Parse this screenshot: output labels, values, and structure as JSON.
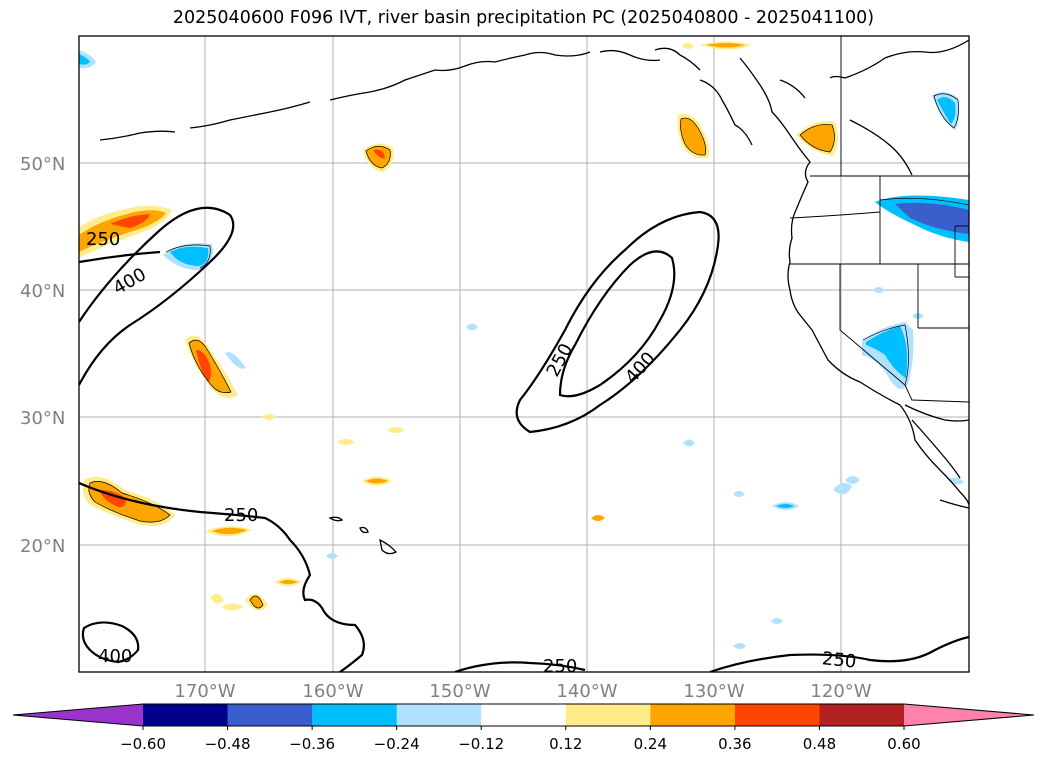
{
  "title": "2025040600 F096 IVT, river basin precipitation PC (2025040800 - 2025041100)",
  "lat_labels": [
    "50°N",
    "40°N",
    "30°N",
    "20°N"
  ],
  "lon_labels": [
    "170°W",
    "160°W",
    "150°W",
    "140°W",
    "130°W",
    "120°W"
  ],
  "ivt_contour_labels": [
    "250",
    "400",
    "250",
    "400",
    "250",
    "400",
    "250",
    "250"
  ],
  "colorbar": {
    "ticks": [
      "−0.60",
      "−0.48",
      "−0.36",
      "−0.24",
      "−0.12",
      "0.12",
      "0.24",
      "0.36",
      "0.48",
      "0.60"
    ],
    "colors": [
      "#9933cc",
      "#00008b",
      "#3a5fcd",
      "#00bfff",
      "#b0e2ff",
      "#ffffff",
      "#ffec8b",
      "#ffa500",
      "#ff4500",
      "#b22222",
      "#ff82ab"
    ]
  }
}
